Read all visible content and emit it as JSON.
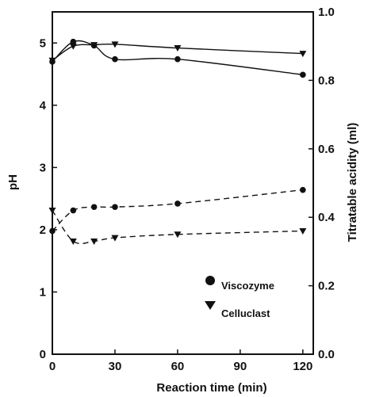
{
  "chart_data": {
    "type": "line",
    "xlabel": "Reaction time (min)",
    "ylabel_left": "pH",
    "ylabel_right": "Titratable acidity (ml)",
    "xlim": [
      0,
      125
    ],
    "ylim_left": [
      0,
      5.5
    ],
    "ylim_right": [
      0,
      1.0
    ],
    "x_ticks": [
      0,
      30,
      60,
      90,
      120
    ],
    "y_ticks_left": [
      0,
      1,
      2,
      3,
      4,
      5
    ],
    "y_ticks_right": [
      0.0,
      0.2,
      0.4,
      0.6,
      0.8,
      1.0
    ],
    "y_tick_labels_right": [
      "0.0",
      "0.2",
      "0.4",
      "0.6",
      "0.8",
      "1.0"
    ],
    "legend_position": "lower-right",
    "grid": false,
    "series": [
      {
        "name": "Viscozyme",
        "marker": "circle",
        "axis": "left",
        "linestyle": "solid",
        "x": [
          0,
          10,
          20,
          30,
          60,
          120
        ],
        "y": [
          4.7,
          5.02,
          4.96,
          4.74,
          4.74,
          4.49
        ]
      },
      {
        "name": "Celluclast",
        "marker": "triangle-down",
        "axis": "left",
        "linestyle": "solid",
        "x": [
          0,
          10,
          20,
          30,
          60,
          120
        ],
        "y": [
          4.72,
          4.95,
          4.97,
          4.98,
          4.92,
          4.83
        ]
      },
      {
        "name": "Viscozyme",
        "marker": "circle",
        "axis": "right",
        "linestyle": "dashed",
        "x": [
          0,
          10,
          20,
          30,
          60,
          120
        ],
        "y": [
          0.36,
          0.42,
          0.43,
          0.43,
          0.44,
          0.48
        ]
      },
      {
        "name": "Celluclast",
        "marker": "triangle-down",
        "axis": "right",
        "linestyle": "dashed",
        "x": [
          0,
          10,
          20,
          30,
          60,
          120
        ],
        "y": [
          0.42,
          0.33,
          0.33,
          0.34,
          0.35,
          0.36
        ]
      }
    ],
    "legend": [
      {
        "label": "Viscozyme",
        "marker": "circle"
      },
      {
        "label": "Celluclast",
        "marker": "triangle-down"
      }
    ]
  }
}
